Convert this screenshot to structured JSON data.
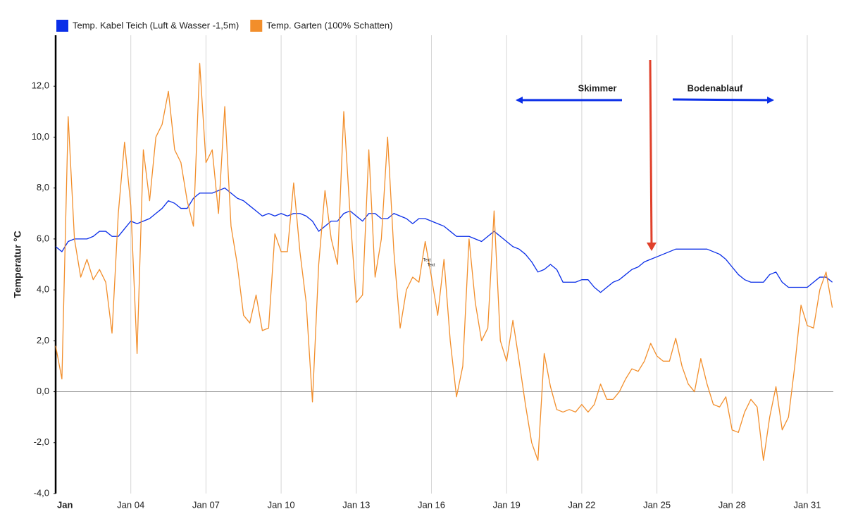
{
  "chart_data": {
    "type": "line",
    "y_label": "Temperatur °C",
    "annotations": [
      "Skimmer",
      "Bodenablauf",
      "Text",
      "Text"
    ],
    "x": [
      0,
      0.25,
      0.5,
      0.75,
      1,
      1.25,
      1.5,
      1.75,
      2,
      2.25,
      2.5,
      2.75,
      3,
      3.25,
      3.5,
      3.75,
      4,
      4.25,
      4.5,
      4.75,
      5,
      5.25,
      5.5,
      5.75,
      6,
      6.25,
      6.5,
      6.75,
      7,
      7.25,
      7.5,
      7.75,
      8,
      8.25,
      8.5,
      8.75,
      9,
      9.25,
      9.5,
      9.75,
      10,
      10.25,
      10.5,
      10.75,
      11,
      11.25,
      11.5,
      11.75,
      12,
      12.25,
      12.5,
      12.75,
      13,
      13.25,
      13.5,
      13.75,
      14,
      14.25,
      14.5,
      14.75,
      15,
      15.25,
      15.5,
      15.75,
      16,
      16.25,
      16.5,
      16.75,
      17,
      17.25,
      17.5,
      17.75,
      18,
      18.25,
      18.5,
      18.75,
      19,
      19.25,
      19.5,
      19.75,
      20,
      20.25,
      20.5,
      20.75,
      21,
      21.25,
      21.5,
      21.75,
      22,
      22.25,
      22.5,
      22.75,
      23,
      23.25,
      23.5,
      23.75,
      24,
      24.25,
      24.5,
      24.75,
      25,
      25.25,
      25.5,
      25.75,
      26,
      26.25,
      26.5,
      26.75,
      27,
      27.25,
      27.5,
      27.75,
      28,
      28.25,
      28.5,
      28.75,
      29,
      29.25,
      29.5,
      29.75,
      30,
      30.25,
      30.5,
      30.75,
      31
    ],
    "series": [
      {
        "name": "Temp. Kabel Teich (Luft & Wasser -1,5m)",
        "color": "#0a2ee8",
        "values": [
          5.7,
          5.5,
          5.9,
          6.0,
          6.0,
          6.0,
          6.1,
          6.3,
          6.3,
          6.1,
          6.1,
          6.4,
          6.7,
          6.6,
          6.7,
          6.8,
          7.0,
          7.2,
          7.5,
          7.4,
          7.2,
          7.2,
          7.6,
          7.8,
          7.8,
          7.8,
          7.9,
          8.0,
          7.8,
          7.6,
          7.5,
          7.3,
          7.1,
          6.9,
          7.0,
          6.9,
          7.0,
          6.9,
          7.0,
          7.0,
          6.9,
          6.7,
          6.3,
          6.5,
          6.7,
          6.7,
          7.0,
          7.1,
          6.9,
          6.7,
          7.0,
          7.0,
          6.8,
          6.8,
          7.0,
          6.9,
          6.8,
          6.6,
          6.8,
          6.8,
          6.7,
          6.6,
          6.5,
          6.3,
          6.1,
          6.1,
          6.1,
          6.0,
          5.9,
          6.1,
          6.3,
          6.1,
          5.9,
          5.7,
          5.6,
          5.4,
          5.1,
          4.7,
          4.8,
          5.0,
          4.8,
          4.3,
          4.3,
          4.3,
          4.4,
          4.4,
          4.1,
          3.9,
          4.1,
          4.3,
          4.4,
          4.6,
          4.8,
          4.9,
          5.1,
          5.2,
          5.3,
          5.4,
          5.5,
          5.6,
          5.6,
          5.6,
          5.6,
          5.6,
          5.6,
          5.5,
          5.4,
          5.2,
          4.9,
          4.6,
          4.4,
          4.3,
          4.3,
          4.3,
          4.6,
          4.7,
          4.3,
          4.1,
          4.1,
          4.1,
          4.1,
          4.3,
          4.5,
          4.5,
          4.3
        ]
      },
      {
        "name": "Temp. Garten (100% Schatten)",
        "color": "#f28e2b",
        "values": [
          1.8,
          0.5,
          10.8,
          6.0,
          4.5,
          5.2,
          4.4,
          4.8,
          4.3,
          2.3,
          7.0,
          9.8,
          7.3,
          1.5,
          9.5,
          7.5,
          10.0,
          10.5,
          11.8,
          9.5,
          9.0,
          7.5,
          6.5,
          12.9,
          9.0,
          9.5,
          7.0,
          11.2,
          6.5,
          5.0,
          3.0,
          2.7,
          3.8,
          2.4,
          2.5,
          6.2,
          5.5,
          5.5,
          8.2,
          5.5,
          3.5,
          -0.4,
          5.0,
          7.9,
          6.0,
          5.0,
          11.0,
          7.0,
          3.5,
          3.8,
          9.5,
          4.5,
          6.0,
          10.0,
          5.5,
          2.5,
          4.0,
          4.5,
          4.3,
          5.9,
          4.5,
          3.0,
          5.2,
          2.0,
          -0.2,
          1.0,
          6.0,
          3.5,
          2.0,
          2.5,
          7.1,
          2.0,
          1.2,
          2.8,
          1.2,
          -0.5,
          -2.0,
          -2.7,
          1.5,
          0.2,
          -0.7,
          -0.8,
          -0.7,
          -0.8,
          -0.5,
          -0.8,
          -0.5,
          0.3,
          -0.3,
          -0.3,
          0.0,
          0.5,
          0.9,
          0.8,
          1.2,
          1.9,
          1.4,
          1.2,
          1.2,
          2.1,
          1.0,
          0.3,
          0.0,
          1.3,
          0.3,
          -0.5,
          -0.6,
          -0.2,
          -1.5,
          -1.6,
          -0.8,
          -0.3,
          -0.6,
          -2.7,
          -1.0,
          0.2,
          -1.5,
          -1.0,
          1.0,
          3.4,
          2.6,
          2.5,
          4.0,
          4.7,
          3.3
        ]
      }
    ],
    "xlim": [
      0,
      31.04
    ],
    "xticks": [
      {
        "value": 0,
        "label": "Jan"
      },
      {
        "value": 3,
        "label": "Jan 04"
      },
      {
        "value": 6,
        "label": "Jan 07"
      },
      {
        "value": 9,
        "label": "Jan 10"
      },
      {
        "value": 12,
        "label": "Jan 13"
      },
      {
        "value": 15,
        "label": "Jan 16"
      },
      {
        "value": 18,
        "label": "Jan 19"
      },
      {
        "value": 21,
        "label": "Jan 22"
      },
      {
        "value": 24,
        "label": "Jan 25"
      },
      {
        "value": 27,
        "label": "Jan 28"
      },
      {
        "value": 30,
        "label": "Jan 31"
      }
    ],
    "ylim": [
      -4,
      14
    ],
    "yticks": [
      {
        "value": -4,
        "label": "-4,0"
      },
      {
        "value": -2,
        "label": "-2,0"
      },
      {
        "value": 0,
        "label": "0,0"
      },
      {
        "value": 2,
        "label": "2,0"
      },
      {
        "value": 4,
        "label": "4,0"
      },
      {
        "value": 6,
        "label": "6,0"
      },
      {
        "value": 8,
        "label": "8,0"
      },
      {
        "value": 10,
        "label": "10,0"
      },
      {
        "value": 12,
        "label": "12,0"
      }
    ],
    "grid": "x"
  }
}
